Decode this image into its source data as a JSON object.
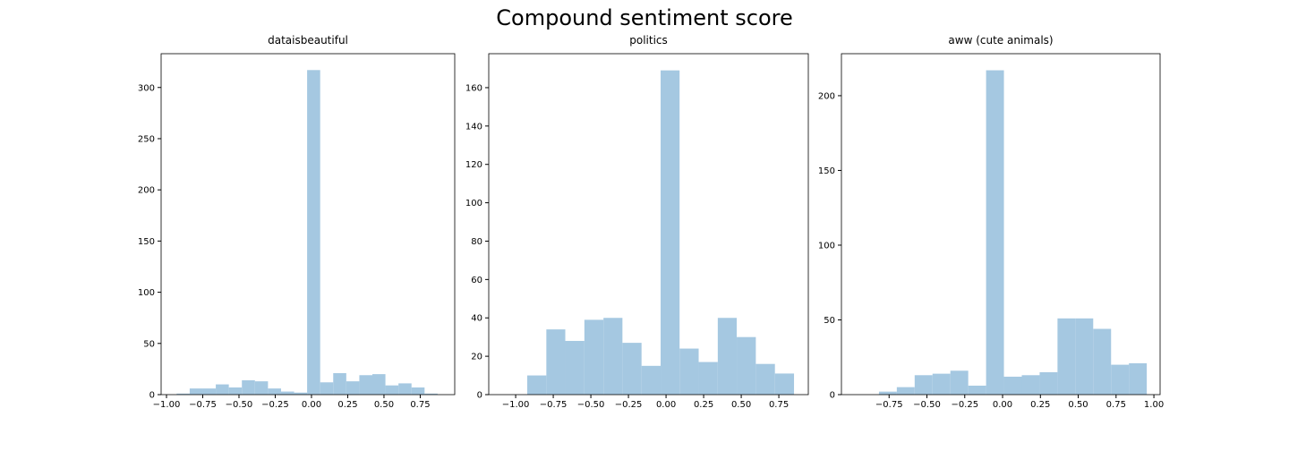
{
  "title": "Compound sentiment score",
  "chart_data": [
    {
      "type": "histogram",
      "title": "dataisbeautiful",
      "color": "#a5c8e1",
      "bins": [
        -0.93,
        -0.84,
        -0.75,
        -0.66,
        -0.57,
        -0.48,
        -0.39,
        -0.3,
        -0.21,
        -0.12,
        -0.03,
        0.06,
        0.15,
        0.24,
        0.33,
        0.42,
        0.51,
        0.6,
        0.69,
        0.78,
        0.87
      ],
      "counts": [
        1,
        6,
        6,
        10,
        7,
        14,
        13,
        6,
        3,
        2,
        317,
        12,
        21,
        13,
        19,
        20,
        9,
        11,
        7,
        1
      ],
      "xlim": [
        -1.037,
        0.988
      ],
      "ylim": [
        0,
        333
      ],
      "xticks": [
        {
          "value": -1.0,
          "label": "−1.00"
        },
        {
          "value": -0.75,
          "label": "−0.75"
        },
        {
          "value": -0.5,
          "label": "−0.50"
        },
        {
          "value": -0.25,
          "label": "−0.25"
        },
        {
          "value": 0,
          "label": "0.00"
        },
        {
          "value": 0.25,
          "label": "0.25"
        },
        {
          "value": 0.5,
          "label": "0.50"
        },
        {
          "value": 0.75,
          "label": "0.75"
        }
      ],
      "yticks": [
        0,
        50,
        100,
        150,
        200,
        250,
        300
      ]
    },
    {
      "type": "histogram",
      "title": "politics",
      "color": "#a5c8e1",
      "bins": [
        -0.923,
        -0.796,
        -0.67,
        -0.543,
        -0.416,
        -0.29,
        -0.163,
        -0.036,
        0.09,
        0.217,
        0.344,
        0.47,
        0.597,
        0.724,
        0.851
      ],
      "counts": [
        10,
        34,
        28,
        39,
        40,
        27,
        15,
        169,
        24,
        17,
        40,
        30,
        16,
        11
      ],
      "xlim": [
        -1.179,
        0.946
      ],
      "ylim": [
        0,
        177.7
      ],
      "xticks": [
        {
          "value": -1.0,
          "label": "−1.00"
        },
        {
          "value": -0.75,
          "label": "−0.75"
        },
        {
          "value": -0.5,
          "label": "−0.50"
        },
        {
          "value": -0.25,
          "label": "−0.25"
        },
        {
          "value": 0,
          "label": "0.00"
        },
        {
          "value": 0.25,
          "label": "0.25"
        },
        {
          "value": 0.5,
          "label": "0.50"
        },
        {
          "value": 0.75,
          "label": "0.75"
        }
      ],
      "yticks": [
        0,
        20,
        40,
        60,
        80,
        100,
        120,
        140,
        160
      ]
    },
    {
      "type": "histogram",
      "title": "aww (cute animals)",
      "color": "#a5c8e1",
      "bins": [
        -0.817,
        -0.699,
        -0.581,
        -0.463,
        -0.345,
        -0.227,
        -0.109,
        0.009,
        0.127,
        0.245,
        0.363,
        0.481,
        0.599,
        0.717,
        0.835,
        0.953
      ],
      "counts": [
        2,
        5,
        13,
        14,
        16,
        6,
        217,
        12,
        13,
        15,
        51,
        51,
        44,
        20,
        21
      ],
      "xlim": [
        -1.065,
        1.041
      ],
      "ylim": [
        0,
        228.1
      ],
      "xticks": [
        {
          "value": -0.75,
          "label": "−0.75"
        },
        {
          "value": -0.5,
          "label": "−0.50"
        },
        {
          "value": -0.25,
          "label": "−0.25"
        },
        {
          "value": 0,
          "label": "0.00"
        },
        {
          "value": 0.25,
          "label": "0.25"
        },
        {
          "value": 0.5,
          "label": "0.50"
        },
        {
          "value": 0.75,
          "label": "0.75"
        },
        {
          "value": 1.0,
          "label": "1.00"
        }
      ],
      "yticks": [
        0,
        50,
        100,
        150,
        200
      ]
    }
  ]
}
